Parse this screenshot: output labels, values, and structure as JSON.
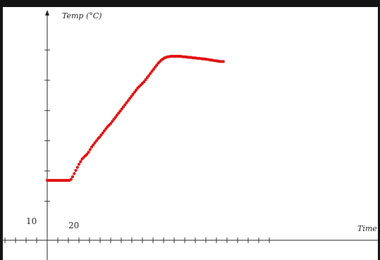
{
  "chart_data": {
    "type": "scatter",
    "xlabel": "Time (",
    "ylabel": "Temp (°C)",
    "tick_labels": {
      "x": "20",
      "y": "10"
    },
    "xlim": [
      10,
      53
    ],
    "ylim": [
      6.7,
      42
    ],
    "grid": false,
    "color": "#e01010",
    "series": [
      {
        "points": [
          [
            10,
            14
          ],
          [
            10.3,
            14
          ],
          [
            10.6,
            14
          ],
          [
            10.9,
            14
          ],
          [
            11.2,
            14
          ],
          [
            11.5,
            14
          ],
          [
            11.8,
            14
          ],
          [
            12.1,
            14
          ],
          [
            12.4,
            14
          ],
          [
            12.7,
            14
          ],
          [
            13,
            14
          ],
          [
            13.3,
            14
          ],
          [
            13.6,
            14
          ],
          [
            13.9,
            14
          ],
          [
            14.2,
            14
          ],
          [
            14.5,
            14.2
          ],
          [
            14.8,
            14.7
          ],
          [
            15.1,
            15.3
          ],
          [
            15.4,
            15.9
          ],
          [
            15.7,
            16.5
          ],
          [
            16,
            17.1
          ],
          [
            16.3,
            17.6
          ],
          [
            16.6,
            18.1
          ],
          [
            16.9,
            18.4
          ],
          [
            17.2,
            18.7
          ],
          [
            17.5,
            19
          ],
          [
            17.8,
            19.4
          ],
          [
            18.1,
            19.9
          ],
          [
            18.4,
            20.4
          ],
          [
            18.7,
            20.8
          ],
          [
            19,
            21.2
          ],
          [
            19.3,
            21.6
          ],
          [
            19.6,
            22
          ],
          [
            19.9,
            22.3
          ],
          [
            20.2,
            22.7
          ],
          [
            20.5,
            23.1
          ],
          [
            20.8,
            23.5
          ],
          [
            21.1,
            23.9
          ],
          [
            21.4,
            24.3
          ],
          [
            21.7,
            24.6
          ],
          [
            22,
            24.9
          ],
          [
            22.3,
            25.3
          ],
          [
            22.6,
            25.7
          ],
          [
            22.9,
            26.1
          ],
          [
            23.2,
            26.5
          ],
          [
            23.5,
            26.9
          ],
          [
            23.8,
            27.3
          ],
          [
            24.1,
            27.7
          ],
          [
            24.4,
            28.1
          ],
          [
            24.7,
            28.5
          ],
          [
            25,
            28.9
          ],
          [
            25.3,
            29.3
          ],
          [
            25.6,
            29.7
          ],
          [
            25.9,
            30.1
          ],
          [
            26.2,
            30.5
          ],
          [
            26.5,
            30.9
          ],
          [
            26.8,
            31.3
          ],
          [
            27.1,
            31.7
          ],
          [
            27.4,
            32
          ],
          [
            27.7,
            32.3
          ],
          [
            28,
            32.6
          ],
          [
            28.3,
            32.9
          ],
          [
            28.6,
            33.3
          ],
          [
            28.9,
            33.7
          ],
          [
            29.2,
            34.1
          ],
          [
            29.5,
            34.5
          ],
          [
            29.8,
            34.9
          ],
          [
            30.1,
            35.3
          ],
          [
            30.4,
            35.7
          ],
          [
            30.7,
            36.1
          ],
          [
            31,
            36.5
          ],
          [
            31.3,
            36.8
          ],
          [
            31.6,
            37.1
          ],
          [
            31.9,
            37.3
          ],
          [
            32.2,
            37.5
          ],
          [
            32.5,
            37.6
          ],
          [
            32.8,
            37.7
          ],
          [
            33.1,
            37.75
          ],
          [
            33.4,
            37.8
          ],
          [
            33.7,
            37.8
          ],
          [
            34,
            37.8
          ],
          [
            34.3,
            37.8
          ],
          [
            34.6,
            37.8
          ],
          [
            34.9,
            37.8
          ],
          [
            35.2,
            37.8
          ],
          [
            35.5,
            37.75
          ],
          [
            35.8,
            37.7
          ],
          [
            36.1,
            37.7
          ],
          [
            36.4,
            37.65
          ],
          [
            36.7,
            37.6
          ],
          [
            37,
            37.6
          ],
          [
            37.3,
            37.55
          ],
          [
            37.6,
            37.5
          ],
          [
            37.9,
            37.5
          ],
          [
            38.2,
            37.45
          ],
          [
            38.5,
            37.4
          ],
          [
            38.8,
            37.4
          ],
          [
            39.1,
            37.35
          ],
          [
            39.4,
            37.3
          ],
          [
            39.7,
            37.3
          ],
          [
            40,
            37.25
          ],
          [
            40.3,
            37.2
          ],
          [
            40.6,
            37.15
          ],
          [
            40.9,
            37.1
          ],
          [
            41.2,
            37.05
          ],
          [
            41.5,
            37
          ],
          [
            41.8,
            36.95
          ],
          [
            42.1,
            36.9
          ],
          [
            42.4,
            36.85
          ],
          [
            42.7,
            36.8
          ],
          [
            43,
            36.8
          ],
          [
            43.3,
            36.8
          ]
        ]
      }
    ]
  }
}
